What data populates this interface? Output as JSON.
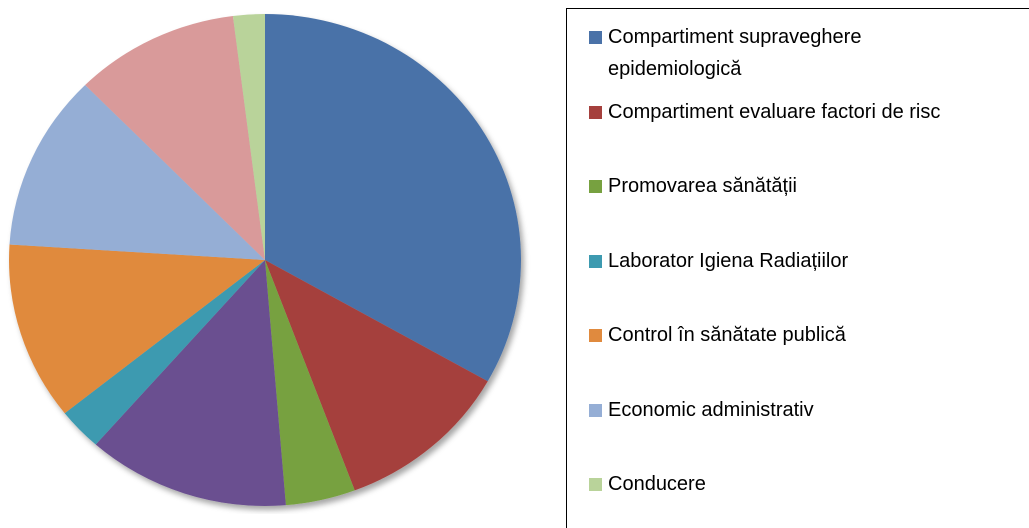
{
  "chart_data": {
    "type": "pie",
    "categories": [
      "Compartiment supraveghere epidemiologică",
      "Compartiment evaluare factori de risc",
      "Promovarea sănătății",
      null,
      "Laborator Igiena Radiațiilor",
      "Control în sănătate publică",
      "Economic administrativ",
      null,
      "Conducere"
    ],
    "values": [
      33.2,
      11.1,
      4.4,
      12.8,
      2.8,
      11.7,
      11.6,
      10.4,
      2.0
    ],
    "colors": [
      "#4a72a8",
      "#a5403d",
      "#77a140",
      "#6b5090",
      "#3d9ab0",
      "#e08a3e",
      "#95aed5",
      "#d99a9a",
      "#b9d39a"
    ],
    "legend": "right"
  }
}
